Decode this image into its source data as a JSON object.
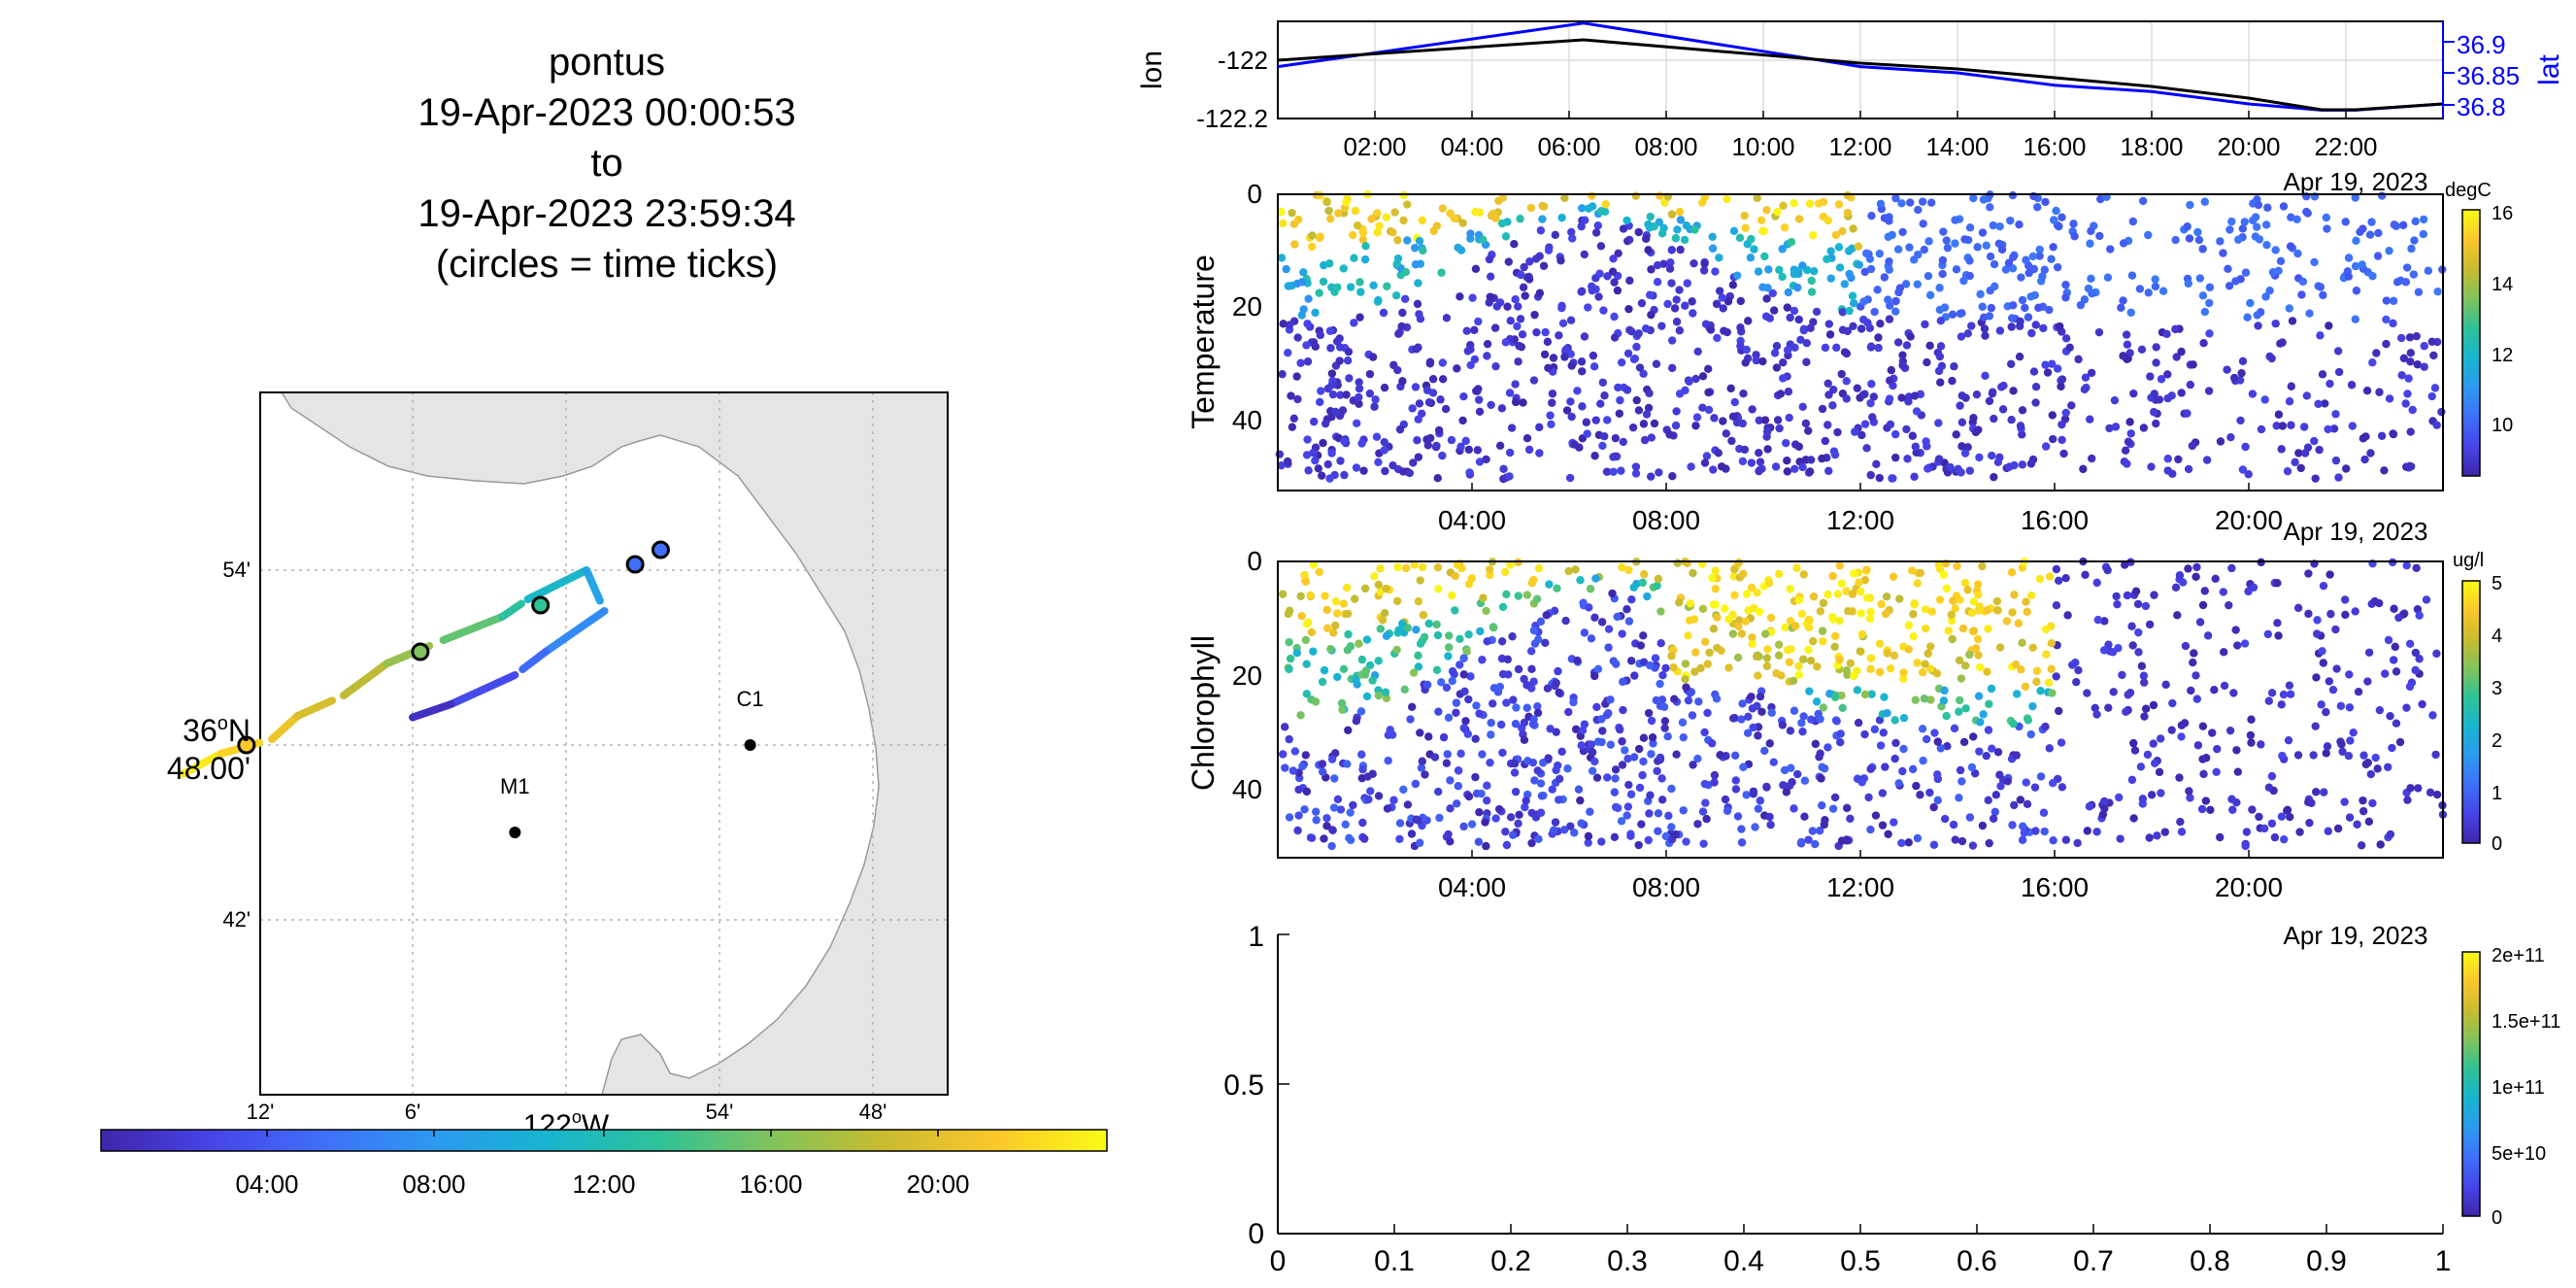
{
  "title_lines": [
    "pontus",
    "19-Apr-2023 00:00:53",
    "to",
    "19-Apr-2023 23:59:34",
    "(circles = time ticks)"
  ],
  "colors": {
    "parula": [
      "#3e26a8",
      "#4744e8",
      "#3f70f9",
      "#2b9af0",
      "#17b5cf",
      "#2ec297",
      "#81c35c",
      "#c9bb2f",
      "#fbc72a",
      "#f9fb15"
    ],
    "lat_axis": "#0000ff",
    "line_black": "#000000",
    "land": "#e5e5e5",
    "grid": "#b5b5b5"
  },
  "chart_data": [
    {
      "type": "map-track",
      "x_ticks": [
        "12'",
        "6'",
        "54'",
        "48'"
      ],
      "x_center_label": "122",
      "x_center_suffix": "W",
      "y_ticks": [
        "54'",
        "42'"
      ],
      "y_center_label": "36",
      "y_center_suffix": "N",
      "y_center_minutes": "48.00'",
      "stations": [
        {
          "name": "M1",
          "lon_min_w": 2.0,
          "lat_min": 45.0
        },
        {
          "name": "C1",
          "lon_min_w": -7.2,
          "lat_min": 48.0
        }
      ],
      "track": [
        {
          "hour": 0.0,
          "lon_min_w": 15.0,
          "lat_min": 47.0
        },
        {
          "hour": 1.5,
          "lon_min_w": 13.5,
          "lat_min": 47.7
        },
        {
          "hour": 2.7,
          "lon_min_w": 11.5,
          "lat_min": 48.2
        },
        {
          "hour": 4.0,
          "lon_min_w": 10.5,
          "lat_min": 49.0
        },
        {
          "hour": 5.3,
          "lon_min_w": 8.7,
          "lat_min": 49.7
        },
        {
          "hour": 6.3,
          "lon_min_w": 7.0,
          "lat_min": 50.8
        },
        {
          "hour": 8.0,
          "lon_min_w": 4.8,
          "lat_min": 51.6
        },
        {
          "hour": 10.0,
          "lon_min_w": 2.5,
          "lat_min": 52.4
        },
        {
          "hour": 12.0,
          "lon_min_w": 1.5,
          "lat_min": 53.0
        },
        {
          "hour": 14.0,
          "lon_min_w": -0.8,
          "lat_min": 54.0
        },
        {
          "hour": 16.0,
          "lon_min_w": -1.5,
          "lat_min": 52.6
        },
        {
          "hour": 18.0,
          "lon_min_w": 0.8,
          "lat_min": 51.2
        },
        {
          "hour": 20.0,
          "lon_min_w": 2.0,
          "lat_min": 50.4
        },
        {
          "hour": 22.0,
          "lon_min_w": 4.5,
          "lat_min": 49.4
        },
        {
          "hour": 24.0,
          "lon_min_w": 6.5,
          "lat_min": 48.8
        }
      ],
      "time_tick_circles": [
        {
          "lon_min_w": 12.5,
          "lat_min": 48.0,
          "color": "#fbc72a"
        },
        {
          "lon_min_w": 5.7,
          "lat_min": 51.2,
          "color": "#81c35c"
        },
        {
          "lon_min_w": 1.0,
          "lat_min": 52.8,
          "color": "#2ec297"
        },
        {
          "lon_min_w": -2.7,
          "lat_min": 54.2,
          "color": "#3f70f9"
        },
        {
          "lon_min_w": -3.7,
          "lat_min": 54.7,
          "color": "#3f70f9"
        }
      ],
      "colorbar_ticks": [
        "04:00",
        "08:00",
        "12:00",
        "16:00",
        "20:00"
      ]
    },
    {
      "type": "line",
      "ylabel_left": "lon",
      "ylabel_right": "lat",
      "yticks_left": [
        "-122",
        "-122.2"
      ],
      "yticks_right": [
        "36.9",
        "36.85",
        "36.8"
      ],
      "xticks": [
        "02:00",
        "04:00",
        "06:00",
        "08:00",
        "10:00",
        "12:00",
        "14:00",
        "16:00",
        "18:00",
        "20:00",
        "22:00"
      ],
      "date_label": "Apr 19, 2023",
      "series": [
        {
          "axis": "lon",
          "x": [
            0,
            6.3,
            12,
            14,
            16,
            18,
            20,
            21.5,
            22.2,
            24
          ],
          "y": [
            -122.0,
            -121.93,
            -122.01,
            -122.03,
            -122.06,
            -122.09,
            -122.13,
            -122.17,
            -122.17,
            -122.15
          ]
        },
        {
          "axis": "lat",
          "x": [
            0,
            6.3,
            12,
            14,
            16,
            18,
            20,
            21.5,
            22.2,
            24
          ],
          "y": [
            36.86,
            36.93,
            36.86,
            36.85,
            36.83,
            36.82,
            36.8,
            36.79,
            36.79,
            36.8
          ]
        }
      ]
    },
    {
      "type": "scatter",
      "ylabel": "Temperature",
      "yticks": [
        "0",
        "20",
        "40"
      ],
      "ylim": [
        0,
        52
      ],
      "xticks": [
        "04:00",
        "08:00",
        "12:00",
        "16:00",
        "20:00"
      ],
      "date_label": "Apr 19, 2023",
      "colorbar_unit": "degC",
      "colorbar_ticks": [
        "16",
        "14",
        "12",
        "10"
      ],
      "clim": [
        8.5,
        16
      ]
    },
    {
      "type": "scatter",
      "ylabel": "Chlorophyll",
      "yticks": [
        "0",
        "20",
        "40"
      ],
      "ylim": [
        0,
        52
      ],
      "xticks": [
        "04:00",
        "08:00",
        "12:00",
        "16:00",
        "20:00"
      ],
      "date_label": "Apr 19, 2023",
      "colorbar_unit": "ug/l",
      "colorbar_ticks": [
        "5",
        "4",
        "3",
        "2",
        "1",
        "0"
      ],
      "clim": [
        0,
        5
      ]
    },
    {
      "type": "scatter",
      "xticks": [
        "0",
        "0.1",
        "0.2",
        "0.3",
        "0.4",
        "0.5",
        "0.6",
        "0.7",
        "0.8",
        "0.9",
        "1"
      ],
      "yticks": [
        "1",
        "0.5",
        "0"
      ],
      "colorbar_ticks": [
        "2e+11",
        "1.5e+11",
        "1e+11",
        "5e+10",
        "0"
      ]
    }
  ]
}
